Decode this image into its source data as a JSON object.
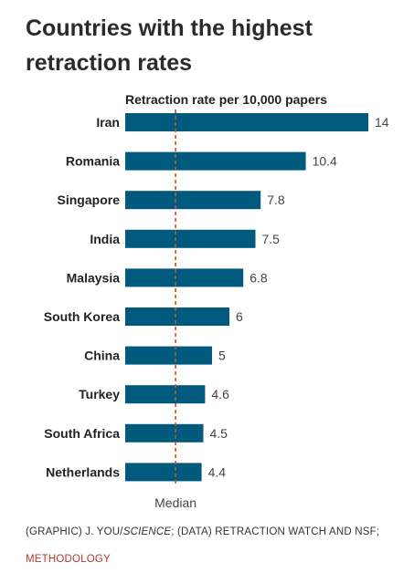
{
  "page": {
    "title": "Countries with the highest retraction rates"
  },
  "chart_data": {
    "type": "bar",
    "orientation": "horizontal",
    "subtitle": "Retraction rate per 10,000 papers",
    "categories": [
      "Iran",
      "Romania",
      "Singapore",
      "India",
      "Malaysia",
      "South Korea",
      "China",
      "Turkey",
      "South Africa",
      "Netherlands"
    ],
    "values": [
      14,
      10.4,
      7.8,
      7.5,
      6.8,
      6,
      5,
      4.6,
      4.5,
      4.4
    ],
    "value_labels": [
      "14",
      "10.4",
      "7.8",
      "7.5",
      "6.8",
      "6",
      "5",
      "4.6",
      "4.5",
      "4.4"
    ],
    "xlim": [
      0,
      14
    ],
    "grid": false,
    "bar_color": "#005a7d",
    "annotation": {
      "label": "Median",
      "value": 2.9,
      "color": "#c0552b",
      "style": "dashed"
    }
  },
  "credit": {
    "prefix": "(GRAPHIC) J. YOU/",
    "source_italic": "SCIENCE",
    "middle": "; (DATA) RETRACTION WATCH AND NSF; ",
    "link_label": "METHODOLOGY",
    "link_color": "#b0392b"
  }
}
